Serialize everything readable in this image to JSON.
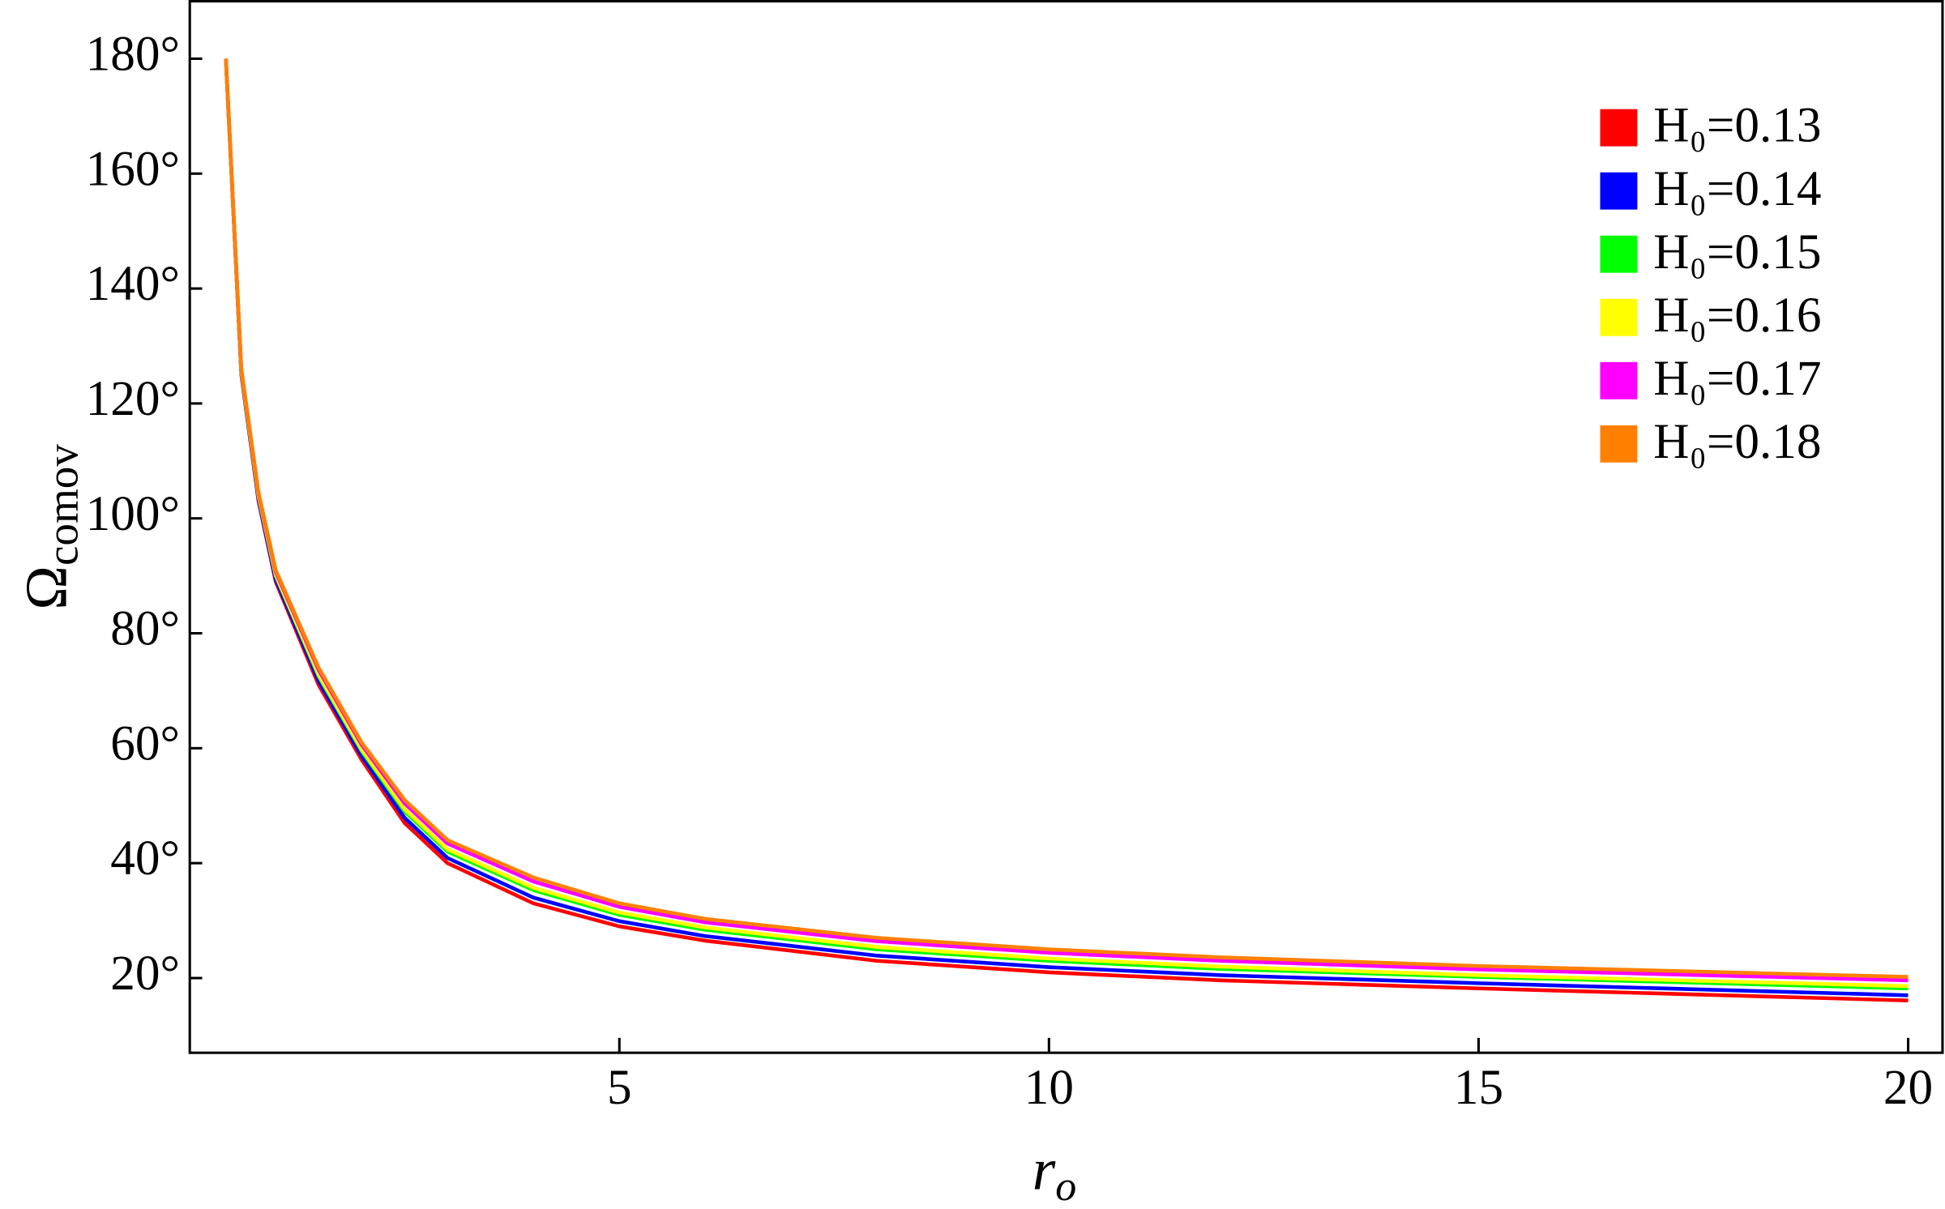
{
  "chart_data": {
    "type": "line",
    "x_label": {
      "symbol": "r",
      "subscript": "o"
    },
    "y_label": {
      "symbol": "Ω",
      "subscript": "comov"
    },
    "x": [
      0.42,
      0.6,
      0.8,
      1,
      1.5,
      2,
      2.5,
      3,
      4,
      5,
      6,
      8,
      10,
      12,
      15,
      20
    ],
    "series": [
      {
        "name": "H₀=0.13",
        "color": "#ff0000",
        "values": [
          180,
          125,
          103,
          89,
          71,
          58,
          47,
          40,
          33,
          29,
          26.5,
          23,
          21,
          19.6,
          18.2,
          16.1
        ]
      },
      {
        "name": "H₀=0.14",
        "color": "#0000ff",
        "values": [
          180,
          125.2,
          103.3,
          89.4,
          71.7,
          58.7,
          47.9,
          40.9,
          34,
          29.9,
          27.3,
          23.9,
          21.9,
          20.5,
          19.1,
          17
        ]
      },
      {
        "name": "H₀=0.15",
        "color": "#00ff00",
        "values": [
          180,
          125.5,
          103.8,
          90,
          72.5,
          59.5,
          49,
          42,
          35.3,
          31,
          28.4,
          25,
          23,
          21.6,
          20.2,
          18.2
        ]
      },
      {
        "name": "H₀=0.16",
        "color": "#ffff00",
        "values": [
          180,
          125.6,
          103.9,
          90.2,
          72.8,
          59.8,
          49.4,
          42.4,
          35.7,
          31.4,
          28.8,
          25.4,
          23.4,
          22,
          20.5,
          18.6
        ]
      },
      {
        "name": "H₀=0.17",
        "color": "#ff00ff",
        "values": [
          180,
          125.9,
          104.3,
          90.7,
          73.6,
          60.6,
          50.4,
          43.4,
          36.8,
          32.4,
          29.7,
          26.4,
          24.4,
          23,
          21.5,
          19.6
        ]
      },
      {
        "name": "H₀=0.18",
        "color": "#ff8000",
        "values": [
          180,
          126,
          104.5,
          91,
          74,
          61,
          51,
          44,
          37.5,
          33,
          30.3,
          27,
          25,
          23.6,
          22.1,
          20.2
        ]
      }
    ],
    "xlim": [
      0,
      20.4
    ],
    "ylim": [
      7,
      190
    ],
    "xticks": [
      5,
      10,
      15,
      20
    ],
    "yticks": [
      {
        "value": 20,
        "label": "20°"
      },
      {
        "value": 40,
        "label": "40°"
      },
      {
        "value": 60,
        "label": "60°"
      },
      {
        "value": 80,
        "label": "80°"
      },
      {
        "value": 100,
        "label": "100°"
      },
      {
        "value": 120,
        "label": "120°"
      },
      {
        "value": 140,
        "label": "140°"
      },
      {
        "value": 160,
        "label": "160°"
      },
      {
        "value": 180,
        "label": "180°"
      }
    ],
    "grid": false,
    "legend": "upper right"
  }
}
